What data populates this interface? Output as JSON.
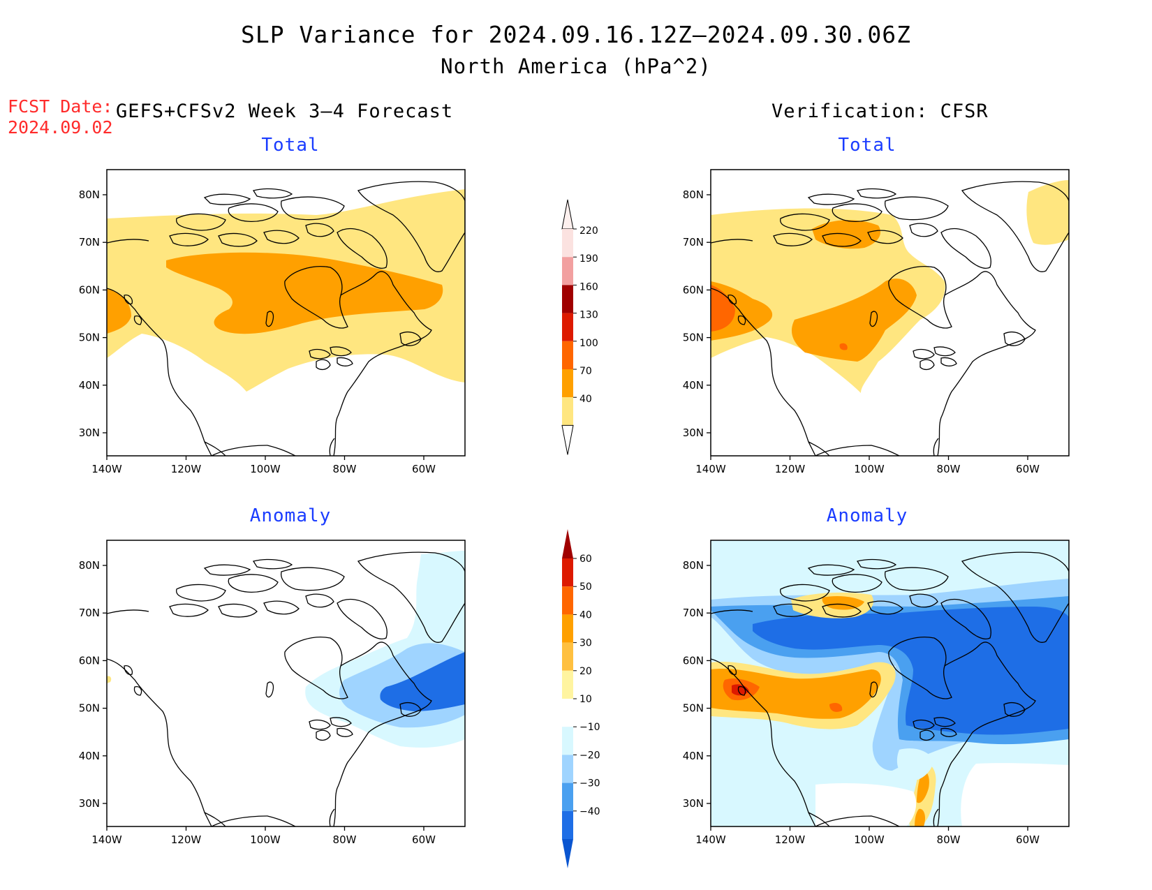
{
  "title": {
    "line1": "SLP Variance for 2024.09.16.12Z–2024.09.30.06Z",
    "line2": "North America (hPa^2)"
  },
  "forecast_date": {
    "label": "FCST Date:",
    "value": "2024.09.02"
  },
  "left_header": "GEFS+CFSv2 Week 3–4 Forecast",
  "right_header": "Verification: CFSR",
  "panels": {
    "fc_total": {
      "title": "Total"
    },
    "ver_total": {
      "title": "Total"
    },
    "fc_anom": {
      "title": "Anomaly"
    },
    "ver_anom": {
      "title": "Anomaly"
    }
  },
  "axes": {
    "lat_labels": [
      "80N",
      "70N",
      "60N",
      "50N",
      "40N",
      "30N"
    ],
    "lon_labels": [
      "140W",
      "120W",
      "100W",
      "80W",
      "60W"
    ]
  },
  "colorbars": {
    "total": {
      "labels": [
        "220",
        "190",
        "160",
        "130",
        "100",
        "70",
        "40"
      ],
      "colors": [
        "#fbe2e0",
        "#f2a0a0",
        "#a00000",
        "#dd1a00",
        "#ff6600",
        "#ffa000",
        "#ffe680"
      ]
    },
    "anomaly": {
      "labels": [
        "60",
        "50",
        "40",
        "30",
        "20",
        "10",
        "−10",
        "−20",
        "−30",
        "−40"
      ],
      "colors": [
        "#a00000",
        "#dd1a00",
        "#ff6600",
        "#ffa000",
        "#ffc040",
        "#fff4a0",
        "#ffffff",
        "#d8f8ff",
        "#9fd4ff",
        "#4aa0f0",
        "#1e6ee6",
        "#0a55d0"
      ]
    }
  },
  "palette": {
    "light_yellow": "#ffe680",
    "orange": "#ffa000",
    "dark_orange": "#ff6600",
    "red": "#dd1a00",
    "light_cyan": "#d8f8ff",
    "light_blue": "#9fd4ff",
    "mid_blue": "#4aa0f0",
    "deep_blue": "#1e6ee6",
    "title_blue": "#1a3cff",
    "date_red": "#ff2a2a"
  }
}
